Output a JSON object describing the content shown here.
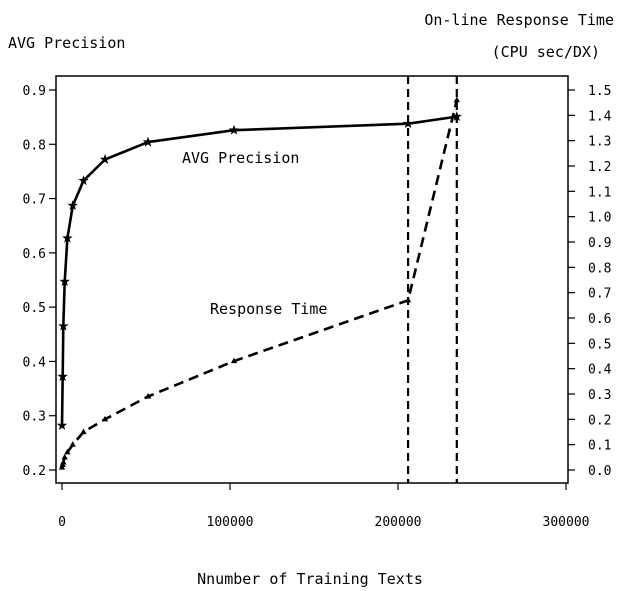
{
  "chart_data": {
    "type": "line",
    "xlabel": "Nnumber of Training Texts",
    "ylabel_left": "AVG Precision",
    "ylabel_right_line1": "On-line Response Time",
    "ylabel_right_line2": "(CPU sec/DX)",
    "xlim": [
      0,
      300000
    ],
    "ylim_left": [
      0.2,
      0.9
    ],
    "ylim_right": [
      0.0,
      1.5
    ],
    "x_ticks": [
      "0",
      "100000",
      "200000",
      "300000"
    ],
    "y_left_ticks": [
      "0.2",
      "0.3",
      "0.4",
      "0.5",
      "0.6",
      "0.7",
      "0.8",
      "0.9"
    ],
    "y_right_ticks": [
      "0.0",
      "0.1",
      "0.2",
      "0.3",
      "0.4",
      "0.5",
      "0.6",
      "0.7",
      "0.8",
      "0.9",
      "1.0",
      "1.1",
      "1.2",
      "1.3",
      "1.4",
      "1.5"
    ],
    "vlines": [
      206000,
      235000
    ],
    "series": [
      {
        "name": "AVG Precision",
        "axis": "left",
        "style": "solid",
        "marker": "star",
        "x": [
          0,
          400,
          800,
          1600,
          3200,
          6400,
          12800,
          25600,
          51200,
          102400,
          206000,
          235000
        ],
        "y": [
          0.282,
          0.372,
          0.465,
          0.547,
          0.627,
          0.687,
          0.733,
          0.772,
          0.804,
          0.826,
          0.838,
          0.851
        ]
      },
      {
        "name": "Response Time",
        "axis": "right",
        "style": "dashed",
        "marker": "triangle",
        "x": [
          0,
          400,
          800,
          1600,
          3200,
          6400,
          12800,
          25600,
          51200,
          102400,
          206000,
          235000
        ],
        "y": [
          0.01,
          0.02,
          0.03,
          0.05,
          0.07,
          0.1,
          0.15,
          0.2,
          0.29,
          0.43,
          0.67,
          1.46
        ]
      }
    ]
  }
}
